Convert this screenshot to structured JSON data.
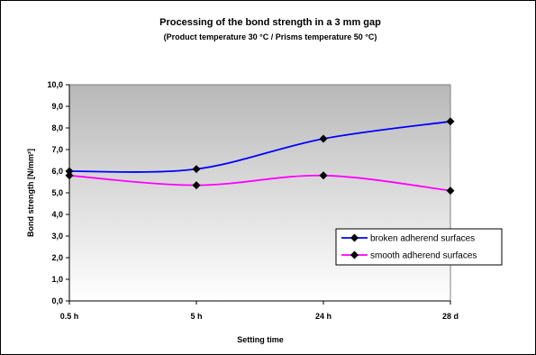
{
  "chart_data": {
    "type": "line",
    "title": "Processing of the bond strength in a 3 mm gap",
    "subtitle": "(Product temperature 30 °C / Prisms temperature 50 °C)",
    "xlabel": "Setting time",
    "ylabel": "Bond strength [N/mm²]",
    "categories": [
      "0.5 h",
      "5 h",
      "24 h",
      "28 d"
    ],
    "ylim": [
      0,
      10
    ],
    "yticks": [
      "0,0",
      "1,0",
      "2,0",
      "3,0",
      "4,0",
      "5,0",
      "6,0",
      "7,0",
      "8,0",
      "9,0",
      "10,0"
    ],
    "grid": false,
    "legend_position": "right",
    "series": [
      {
        "name": "broken adherend surfaces",
        "values": [
          6.0,
          6.1,
          7.5,
          8.3
        ],
        "color": "#0000ff"
      },
      {
        "name": "smooth adherend surfaces",
        "values": [
          5.8,
          5.35,
          5.8,
          5.1
        ],
        "color": "#ff00ff"
      }
    ],
    "marker": "diamond",
    "plot_gradient": [
      "#b8b8b8",
      "#ffffff"
    ]
  }
}
